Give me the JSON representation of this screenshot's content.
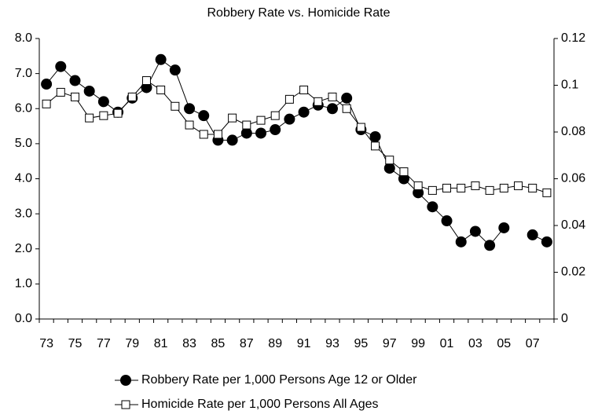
{
  "chart_data": {
    "type": "line",
    "title": "Robbery Rate vs. Homicide Rate",
    "categories": [
      "73",
      null,
      "75",
      null,
      "77",
      null,
      "79",
      null,
      "81",
      null,
      "83",
      null,
      "85",
      null,
      "87",
      null,
      "89",
      null,
      "91",
      null,
      "93",
      null,
      "95",
      null,
      "97",
      null,
      "99",
      null,
      "01",
      null,
      "03",
      null,
      "05",
      null,
      "07",
      null
    ],
    "series": [
      {
        "name": "Robbery Rate per 1,000 Persons Age 12 or Older",
        "color": "#000000",
        "marker": "circle",
        "values": [
          6.7,
          7.2,
          6.8,
          6.5,
          6.2,
          5.9,
          6.3,
          6.6,
          7.4,
          7.1,
          6.0,
          5.8,
          5.1,
          5.1,
          5.3,
          5.3,
          5.4,
          5.7,
          5.9,
          6.1,
          6.0,
          6.3,
          5.4,
          5.2,
          4.3,
          4.0,
          3.6,
          3.2,
          2.8,
          2.2,
          2.5,
          2.1,
          2.6,
          null,
          2.4,
          2.2
        ]
      },
      {
        "name": "Homicide Rate per 1,000 Persons All Ages",
        "color": "#000000",
        "marker": "square",
        "axis": "y2",
        "values": [
          0.092,
          0.097,
          0.095,
          0.086,
          0.087,
          0.088,
          0.095,
          0.102,
          0.098,
          0.091,
          0.083,
          0.079,
          0.079,
          0.086,
          0.083,
          0.085,
          0.087,
          0.094,
          0.098,
          0.093,
          0.095,
          0.09,
          0.082,
          0.074,
          0.068,
          0.063,
          0.057,
          0.055,
          0.056,
          0.056,
          0.057,
          0.055,
          0.056,
          0.057,
          0.056,
          0.054
        ]
      }
    ],
    "ylim": [
      0,
      8
    ],
    "yticks": [
      {
        "value": 0,
        "label": "0.0"
      },
      {
        "value": 1,
        "label": "1.0"
      },
      {
        "value": 2,
        "label": "2.0"
      },
      {
        "value": 3,
        "label": "3.0"
      },
      {
        "value": 4,
        "label": "4.0"
      },
      {
        "value": 5,
        "label": "5.0"
      },
      {
        "value": 6,
        "label": "6.0"
      },
      {
        "value": 7,
        "label": "7.0"
      },
      {
        "value": 8,
        "label": "8.0"
      }
    ],
    "y2lim": [
      0,
      0.12
    ],
    "y2ticks": [
      0,
      0.02,
      0.04,
      0.06,
      0.08,
      0.1,
      0.12
    ],
    "grid": false,
    "legend": "bottom"
  }
}
